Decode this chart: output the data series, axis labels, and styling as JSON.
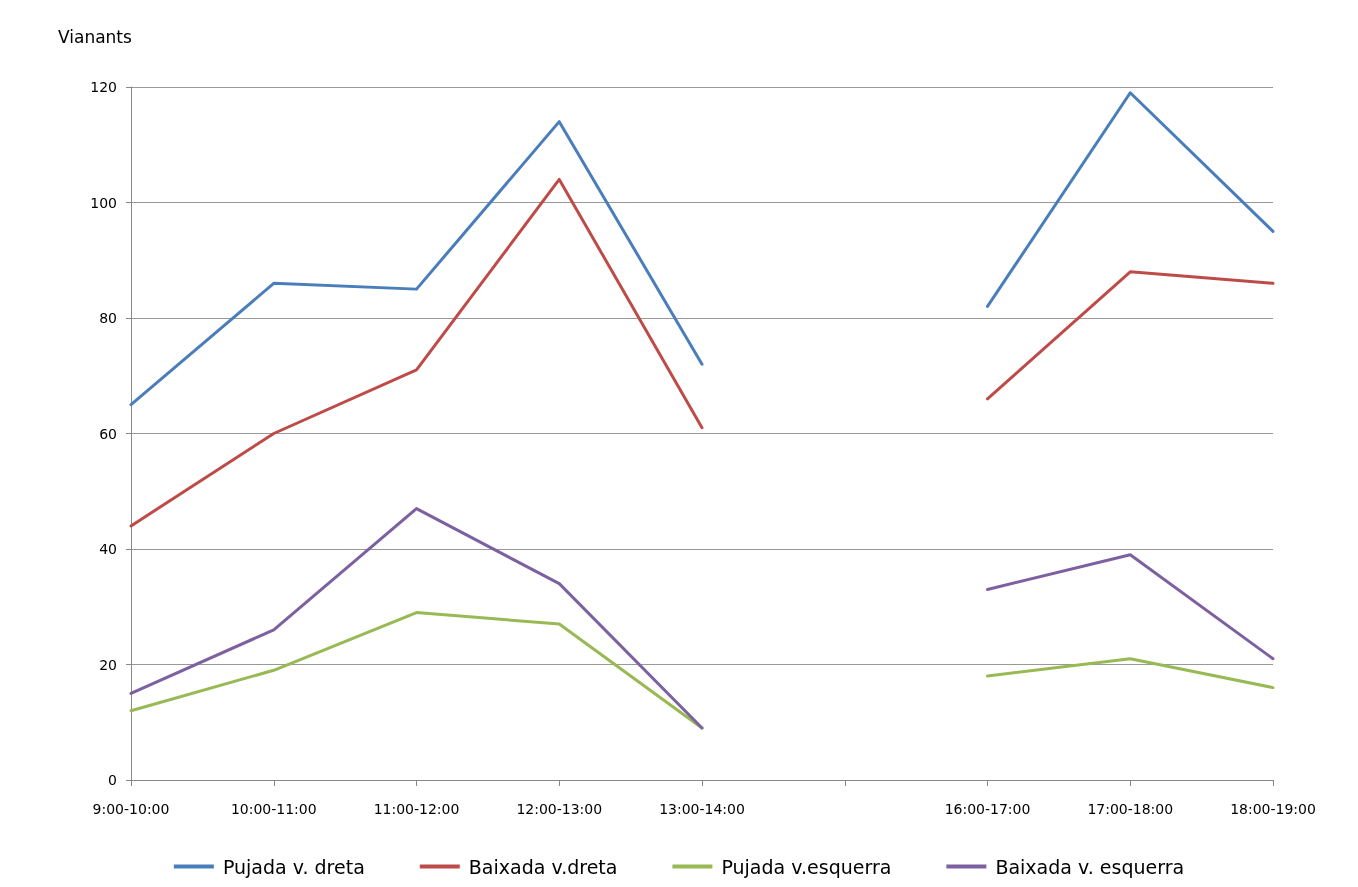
{
  "chart_data": {
    "type": "line",
    "ylabel": "Vianants",
    "categories": [
      "9:00-10:00",
      "10:00-11:00",
      "11:00-12:00",
      "12:00-13:00",
      "13:00-14:00",
      null,
      "16:00-17:00",
      "17:00-18:00",
      "18:00-19:00"
    ],
    "series": [
      {
        "name": "Pujada v. dreta",
        "color": "#4a7ebb",
        "values": [
          65,
          86,
          85,
          114,
          72,
          null,
          82,
          119,
          95
        ]
      },
      {
        "name": "Baixada v.dreta",
        "color": "#be4b48",
        "values": [
          44,
          60,
          71,
          104,
          61,
          null,
          66,
          88,
          86
        ]
      },
      {
        "name": "Pujada v.esquerra",
        "color": "#98b954",
        "values": [
          12,
          19,
          29,
          27,
          9,
          null,
          18,
          21,
          16
        ]
      },
      {
        "name": "Baixada v. esquerra",
        "color": "#7d60a0",
        "values": [
          15,
          26,
          47,
          34,
          9,
          null,
          33,
          39,
          21
        ]
      }
    ],
    "ylim": [
      0,
      120
    ],
    "yticks": [
      0,
      20,
      40,
      60,
      80,
      100,
      120
    ],
    "grid": "y",
    "legend": "bottom",
    "marker": "none",
    "line_style": "solid"
  }
}
